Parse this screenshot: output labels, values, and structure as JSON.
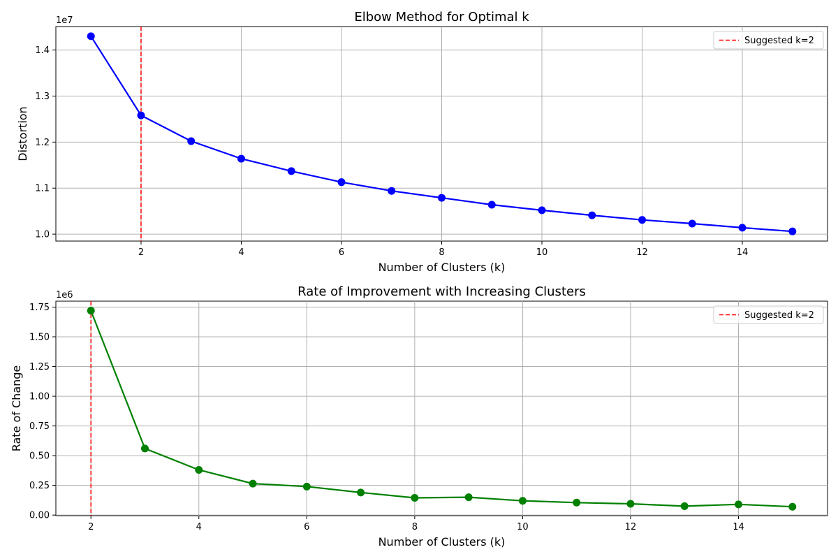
{
  "chart_data": [
    {
      "type": "line",
      "title": "Elbow Method for Optimal k",
      "xlabel": "Number of Clusters (k)",
      "ylabel": "Distortion",
      "y_offset_label": "1e7",
      "y_scale": 10000000,
      "x": [
        1,
        2,
        3,
        4,
        5,
        6,
        7,
        8,
        9,
        10,
        11,
        12,
        13,
        14,
        15
      ],
      "series": [
        {
          "name": "",
          "color": "#0000ff",
          "values": [
            14300000,
            12580000,
            12020000,
            11640000,
            11370000,
            11130000,
            10940000,
            10790000,
            10640000,
            10520000,
            10410000,
            10310000,
            10230000,
            10140000,
            10060000
          ]
        }
      ],
      "xlim": [
        0.3,
        15.7
      ],
      "ylim": [
        9850000,
        14510000
      ],
      "xticks": [
        2,
        4,
        6,
        8,
        10,
        12,
        14
      ],
      "yticks": [
        10000000,
        11000000,
        12000000,
        13000000,
        14000000
      ],
      "ytick_labels": [
        "1.0",
        "1.1",
        "1.2",
        "1.3",
        "1.4"
      ],
      "vline": {
        "x": 2,
        "color": "#ff0000",
        "label": "Suggested k=2"
      },
      "grid": true,
      "legend_position": "top-right"
    },
    {
      "type": "line",
      "title": "Rate of Improvement with Increasing Clusters",
      "xlabel": "Number of Clusters (k)",
      "ylabel": "Rate of Change",
      "y_offset_label": "1e6",
      "y_scale": 1000000,
      "x": [
        2,
        3,
        4,
        5,
        6,
        7,
        8,
        9,
        10,
        11,
        12,
        13,
        14,
        15
      ],
      "series": [
        {
          "name": "",
          "color": "#008000",
          "values": [
            1720000,
            560000,
            380000,
            265000,
            240000,
            190000,
            145000,
            150000,
            120000,
            105000,
            95000,
            75000,
            90000,
            70000
          ]
        }
      ],
      "xlim": [
        1.35,
        15.65
      ],
      "ylim": [
        -5000,
        1800000
      ],
      "xticks": [
        2,
        4,
        6,
        8,
        10,
        12,
        14
      ],
      "yticks": [
        0,
        250000,
        500000,
        750000,
        1000000,
        1250000,
        1500000,
        1750000
      ],
      "ytick_labels": [
        "0.00",
        "0.25",
        "0.50",
        "0.75",
        "1.00",
        "1.25",
        "1.50",
        "1.75"
      ],
      "vline": {
        "x": 2,
        "color": "#ff0000",
        "label": "Suggested k=2"
      },
      "grid": true,
      "legend_position": "top-right"
    }
  ]
}
